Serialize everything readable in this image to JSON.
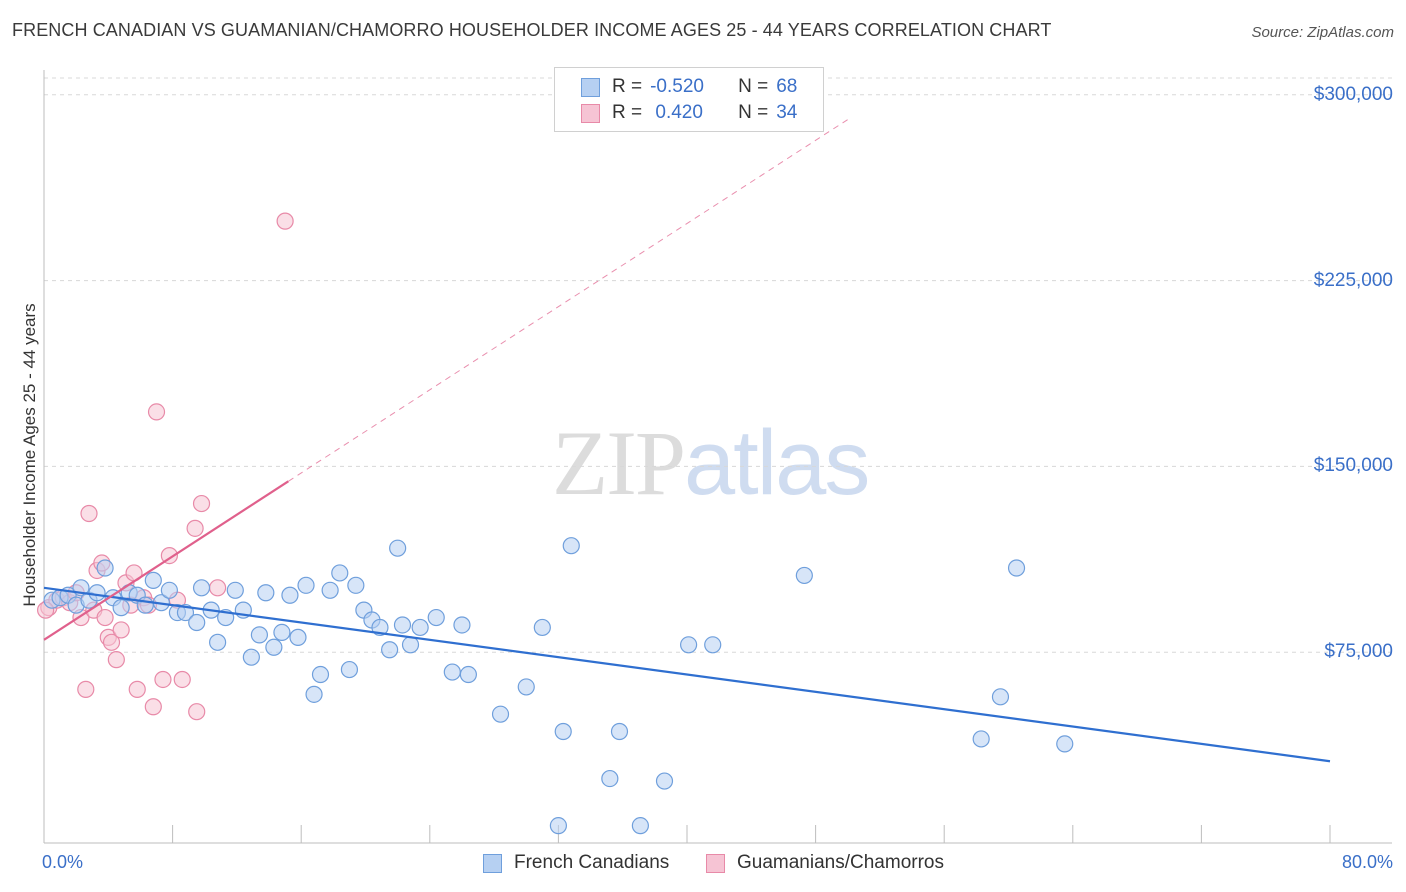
{
  "header": {
    "title": "FRENCH CANADIAN VS GUAMANIAN/CHAMORRO HOUSEHOLDER INCOME AGES 25 - 44 YEARS CORRELATION CHART",
    "source": "Source: ZipAtlas.com"
  },
  "watermark": {
    "zip": "ZIP",
    "atlas": "atlas"
  },
  "legend": {
    "rows": [
      {
        "r_label": "R =",
        "r_value": "-0.520",
        "n_label": "N =",
        "n_value": "68"
      },
      {
        "r_label": "R =",
        "r_value": " 0.420",
        "n_label": "N =",
        "n_value": "34"
      }
    ]
  },
  "colors": {
    "blue_fill": "#b6d0f2",
    "blue_stroke": "#6f9fdc",
    "blue_line": "#2f6fd0",
    "pink_fill": "#f6c4d4",
    "pink_stroke": "#e88aa8",
    "pink_line": "#e0608c",
    "tick_text": "#3a6fc8",
    "grid": "#d8d8d8"
  },
  "chart_data": {
    "type": "scatter",
    "title": "FRENCH CANADIAN VS GUAMANIAN/CHAMORRO HOUSEHOLDER INCOME AGES 25 - 44 YEARS CORRELATION CHART",
    "xlabel": "",
    "ylabel": "Householder Income Ages 25 - 44 years",
    "xlim": [
      0,
      80
    ],
    "ylim": [
      -2000,
      310000
    ],
    "x_tick_labels": [
      "0.0%",
      "80.0%"
    ],
    "y_ticks": [
      75000,
      150000,
      225000,
      300000
    ],
    "y_tick_labels": [
      "$75,000",
      "$150,000",
      "$225,000",
      "$300,000"
    ],
    "series": [
      {
        "name": "French Canadians",
        "r": -0.52,
        "n": 68,
        "trend": {
          "x": [
            0,
            80
          ],
          "y": [
            101000,
            31000
          ],
          "style": "solid"
        },
        "points": [
          {
            "x": 0.5,
            "y": 96000
          },
          {
            "x": 1.0,
            "y": 97000
          },
          {
            "x": 1.5,
            "y": 98000
          },
          {
            "x": 2.0,
            "y": 94000
          },
          {
            "x": 2.3,
            "y": 101000
          },
          {
            "x": 2.8,
            "y": 96000
          },
          {
            "x": 3.3,
            "y": 99000
          },
          {
            "x": 3.8,
            "y": 109000
          },
          {
            "x": 4.3,
            "y": 97000
          },
          {
            "x": 4.8,
            "y": 93000
          },
          {
            "x": 5.3,
            "y": 99000
          },
          {
            "x": 5.8,
            "y": 98000
          },
          {
            "x": 6.3,
            "y": 94000
          },
          {
            "x": 6.8,
            "y": 104000
          },
          {
            "x": 7.3,
            "y": 95000
          },
          {
            "x": 7.8,
            "y": 100000
          },
          {
            "x": 8.3,
            "y": 91000
          },
          {
            "x": 8.8,
            "y": 91000
          },
          {
            "x": 9.5,
            "y": 87000
          },
          {
            "x": 9.8,
            "y": 101000
          },
          {
            "x": 10.4,
            "y": 92000
          },
          {
            "x": 10.8,
            "y": 79000
          },
          {
            "x": 11.3,
            "y": 89000
          },
          {
            "x": 11.9,
            "y": 100000
          },
          {
            "x": 12.4,
            "y": 92000
          },
          {
            "x": 12.9,
            "y": 73000
          },
          {
            "x": 13.4,
            "y": 82000
          },
          {
            "x": 13.8,
            "y": 99000
          },
          {
            "x": 14.3,
            "y": 77000
          },
          {
            "x": 14.8,
            "y": 83000
          },
          {
            "x": 15.3,
            "y": 98000
          },
          {
            "x": 15.8,
            "y": 81000
          },
          {
            "x": 16.3,
            "y": 102000
          },
          {
            "x": 16.8,
            "y": 58000
          },
          {
            "x": 17.2,
            "y": 66000
          },
          {
            "x": 17.8,
            "y": 100000
          },
          {
            "x": 18.4,
            "y": 107000
          },
          {
            "x": 19.0,
            "y": 68000
          },
          {
            "x": 19.4,
            "y": 102000
          },
          {
            "x": 19.9,
            "y": 92000
          },
          {
            "x": 20.4,
            "y": 88000
          },
          {
            "x": 20.9,
            "y": 85000
          },
          {
            "x": 21.5,
            "y": 76000
          },
          {
            "x": 22.0,
            "y": 117000
          },
          {
            "x": 22.3,
            "y": 86000
          },
          {
            "x": 22.8,
            "y": 78000
          },
          {
            "x": 23.4,
            "y": 85000
          },
          {
            "x": 24.4,
            "y": 89000
          },
          {
            "x": 25.4,
            "y": 67000
          },
          {
            "x": 26.0,
            "y": 86000
          },
          {
            "x": 26.4,
            "y": 66000
          },
          {
            "x": 28.4,
            "y": 50000
          },
          {
            "x": 30.0,
            "y": 61000
          },
          {
            "x": 31.0,
            "y": 85000
          },
          {
            "x": 32.0,
            "y": 5000
          },
          {
            "x": 32.3,
            "y": 43000
          },
          {
            "x": 32.8,
            "y": 118000
          },
          {
            "x": 35.2,
            "y": 24000
          },
          {
            "x": 35.8,
            "y": 43000
          },
          {
            "x": 37.1,
            "y": 5000
          },
          {
            "x": 38.6,
            "y": 23000
          },
          {
            "x": 40.1,
            "y": 78000
          },
          {
            "x": 41.6,
            "y": 78000
          },
          {
            "x": 47.3,
            "y": 106000
          },
          {
            "x": 58.3,
            "y": 40000
          },
          {
            "x": 59.5,
            "y": 57000
          },
          {
            "x": 60.5,
            "y": 109000
          },
          {
            "x": 63.5,
            "y": 38000
          }
        ]
      },
      {
        "name": "Guamanians/Chamorros",
        "r": 0.42,
        "n": 34,
        "trend": {
          "x": [
            0,
            15.2
          ],
          "y": [
            80000,
            144000
          ],
          "style": "solid",
          "extended": {
            "x": [
              15.2,
              50
            ],
            "y": [
              144000,
              290000
            ],
            "style": "dashed"
          }
        },
        "points": [
          {
            "x": 0.3,
            "y": 93000
          },
          {
            "x": 0.8,
            "y": 96000
          },
          {
            "x": 1.2,
            "y": 97000
          },
          {
            "x": 1.6,
            "y": 95000
          },
          {
            "x": 2.0,
            "y": 99000
          },
          {
            "x": 2.3,
            "y": 89000
          },
          {
            "x": 2.6,
            "y": 60000
          },
          {
            "x": 2.8,
            "y": 131000
          },
          {
            "x": 3.1,
            "y": 92000
          },
          {
            "x": 3.3,
            "y": 108000
          },
          {
            "x": 3.6,
            "y": 111000
          },
          {
            "x": 3.8,
            "y": 89000
          },
          {
            "x": 4.0,
            "y": 81000
          },
          {
            "x": 4.2,
            "y": 79000
          },
          {
            "x": 4.5,
            "y": 72000
          },
          {
            "x": 4.8,
            "y": 84000
          },
          {
            "x": 5.1,
            "y": 103000
          },
          {
            "x": 5.4,
            "y": 94000
          },
          {
            "x": 5.6,
            "y": 107000
          },
          {
            "x": 5.8,
            "y": 60000
          },
          {
            "x": 6.2,
            "y": 97000
          },
          {
            "x": 6.5,
            "y": 94000
          },
          {
            "x": 6.8,
            "y": 53000
          },
          {
            "x": 7.0,
            "y": 172000
          },
          {
            "x": 7.4,
            "y": 64000
          },
          {
            "x": 7.8,
            "y": 114000
          },
          {
            "x": 8.3,
            "y": 96000
          },
          {
            "x": 8.6,
            "y": 64000
          },
          {
            "x": 9.4,
            "y": 125000
          },
          {
            "x": 9.5,
            "y": 51000
          },
          {
            "x": 9.8,
            "y": 135000
          },
          {
            "x": 10.8,
            "y": 101000
          },
          {
            "x": 15.0,
            "y": 249000
          },
          {
            "x": 0.1,
            "y": 92000
          }
        ]
      }
    ]
  },
  "bottom_legend": {
    "items": [
      {
        "label": "French Canadians"
      },
      {
        "label": "Guamanians/Chamorros"
      }
    ]
  }
}
